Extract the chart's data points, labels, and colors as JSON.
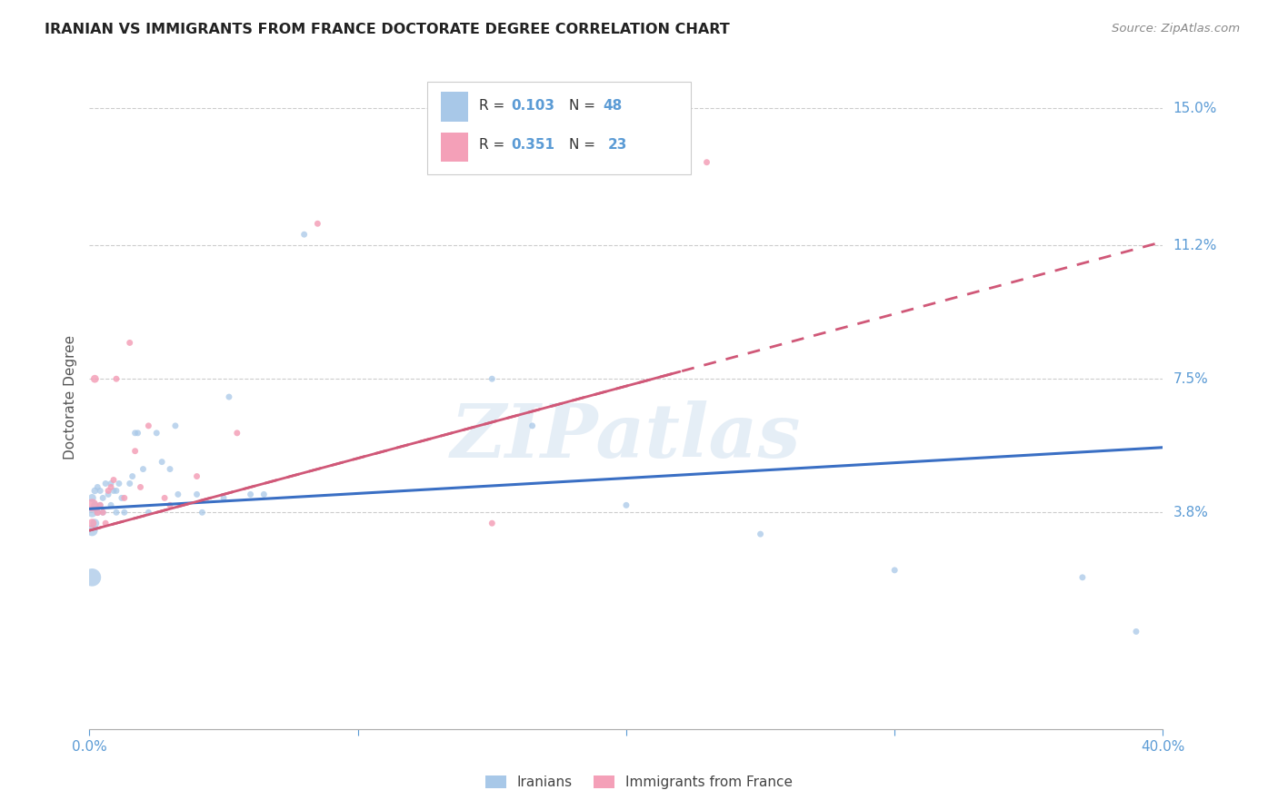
{
  "title": "IRANIAN VS IMMIGRANTS FROM FRANCE DOCTORATE DEGREE CORRELATION CHART",
  "source": "Source: ZipAtlas.com",
  "ylabel": "Doctorate Degree",
  "ytick_right_labels": [
    "3.8%",
    "7.5%",
    "11.2%",
    "15.0%"
  ],
  "ytick_right_vals": [
    0.038,
    0.075,
    0.112,
    0.15
  ],
  "xmin": 0.0,
  "xmax": 0.4,
  "ymin": -0.022,
  "ymax": 0.162,
  "legend_sublabel1": "Iranians",
  "legend_sublabel2": "Immigrants from France",
  "color_blue": "#a8c8e8",
  "color_pink": "#f4a0b8",
  "color_line_blue": "#3a6fc4",
  "color_line_pink": "#d05878",
  "watermark": "ZIPatlas",
  "blue_line_x": [
    0.0,
    0.4
  ],
  "blue_line_y": [
    0.039,
    0.056
  ],
  "pink_line_x": [
    0.0,
    0.4
  ],
  "pink_line_y": [
    0.033,
    0.113
  ],
  "iranians_x": [
    0.001,
    0.001,
    0.001,
    0.001,
    0.002,
    0.002,
    0.002,
    0.003,
    0.003,
    0.004,
    0.004,
    0.005,
    0.005,
    0.006,
    0.007,
    0.008,
    0.008,
    0.009,
    0.01,
    0.01,
    0.011,
    0.012,
    0.013,
    0.015,
    0.016,
    0.017,
    0.018,
    0.02,
    0.022,
    0.025,
    0.027,
    0.03,
    0.032,
    0.033,
    0.04,
    0.042,
    0.05,
    0.052,
    0.06,
    0.065,
    0.08,
    0.15,
    0.165,
    0.2,
    0.25,
    0.3,
    0.37,
    0.39
  ],
  "iranians_y": [
    0.02,
    0.033,
    0.038,
    0.042,
    0.035,
    0.04,
    0.044,
    0.038,
    0.045,
    0.04,
    0.044,
    0.038,
    0.042,
    0.046,
    0.043,
    0.04,
    0.046,
    0.044,
    0.038,
    0.044,
    0.046,
    0.042,
    0.038,
    0.046,
    0.048,
    0.06,
    0.06,
    0.05,
    0.038,
    0.06,
    0.052,
    0.05,
    0.062,
    0.043,
    0.043,
    0.038,
    0.042,
    0.07,
    0.043,
    0.043,
    0.115,
    0.075,
    0.062,
    0.04,
    0.032,
    0.022,
    0.02,
    0.005
  ],
  "iranians_s": [
    200,
    80,
    60,
    40,
    50,
    35,
    30,
    30,
    25,
    25,
    25,
    25,
    25,
    25,
    25,
    25,
    25,
    25,
    25,
    25,
    25,
    25,
    25,
    25,
    25,
    25,
    25,
    25,
    25,
    25,
    25,
    25,
    25,
    25,
    25,
    25,
    25,
    25,
    25,
    25,
    25,
    25,
    25,
    25,
    25,
    25,
    25,
    25
  ],
  "france_x": [
    0.001,
    0.001,
    0.002,
    0.003,
    0.004,
    0.005,
    0.006,
    0.007,
    0.008,
    0.009,
    0.01,
    0.013,
    0.015,
    0.017,
    0.019,
    0.022,
    0.028,
    0.03,
    0.04,
    0.055,
    0.085,
    0.15,
    0.23
  ],
  "france_y": [
    0.04,
    0.035,
    0.075,
    0.038,
    0.04,
    0.038,
    0.035,
    0.044,
    0.045,
    0.047,
    0.075,
    0.042,
    0.085,
    0.055,
    0.045,
    0.062,
    0.042,
    0.04,
    0.048,
    0.06,
    0.118,
    0.035,
    0.135
  ],
  "france_s": [
    100,
    50,
    40,
    30,
    25,
    25,
    25,
    25,
    25,
    25,
    25,
    25,
    25,
    25,
    25,
    25,
    25,
    25,
    25,
    25,
    25,
    25,
    25
  ]
}
